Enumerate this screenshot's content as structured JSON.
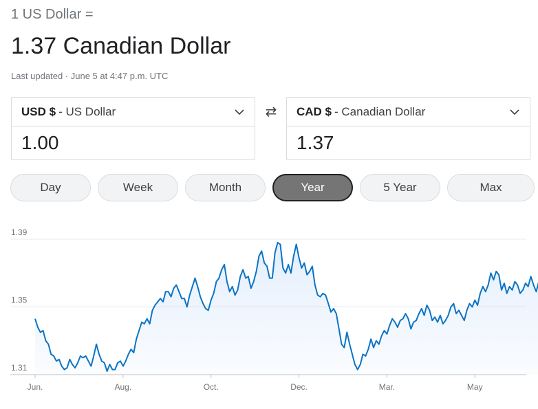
{
  "header": {
    "from_text": "1 US Dollar =",
    "to_text": "1.37 Canadian Dollar",
    "updated": "Last updated · June 5 at 4:47 p.m. UTC"
  },
  "from_currency": {
    "code": "USD $",
    "name": "- US Dollar",
    "amount": "1.00"
  },
  "to_currency": {
    "code": "CAD $",
    "name": "- Canadian Dollar",
    "amount": "1.37"
  },
  "swap_icon": "⇄",
  "ranges": [
    "Day",
    "Week",
    "Month",
    "Year",
    "5 Year",
    "Max"
  ],
  "active_range": "Year",
  "colors": {
    "line": "#1a73e8",
    "accent": "#0b74c4"
  },
  "chart_data": {
    "type": "line",
    "ylim": [
      1.31,
      1.39
    ],
    "yticks": [
      "1.39",
      "1.35",
      "1.31"
    ],
    "yticks_values": [
      1.39,
      1.35,
      1.31
    ],
    "xticks": [
      "Jun.",
      "Aug.",
      "Oct.",
      "Dec.",
      "Mar.",
      "May"
    ],
    "xticks_index": [
      0,
      33,
      66,
      99,
      132,
      165
    ],
    "series": [
      {
        "values": [
          1.343,
          1.338,
          1.335,
          1.336,
          1.33,
          1.328,
          1.322,
          1.321,
          1.318,
          1.319,
          1.315,
          1.313,
          1.314,
          1.319,
          1.316,
          1.314,
          1.317,
          1.321,
          1.32,
          1.321,
          1.318,
          1.315,
          1.321,
          1.328,
          1.322,
          1.318,
          1.317,
          1.312,
          1.316,
          1.313,
          1.313,
          1.317,
          1.318,
          1.315,
          1.318,
          1.322,
          1.325,
          1.323,
          1.331,
          1.336,
          1.341,
          1.34,
          1.343,
          1.34,
          1.348,
          1.351,
          1.353,
          1.355,
          1.353,
          1.359,
          1.359,
          1.356,
          1.361,
          1.363,
          1.359,
          1.355,
          1.355,
          1.35,
          1.357,
          1.362,
          1.367,
          1.362,
          1.356,
          1.352,
          1.349,
          1.348,
          1.354,
          1.358,
          1.365,
          1.367,
          1.372,
          1.375,
          1.365,
          1.359,
          1.362,
          1.357,
          1.36,
          1.368,
          1.372,
          1.367,
          1.368,
          1.361,
          1.365,
          1.371,
          1.38,
          1.383,
          1.376,
          1.374,
          1.367,
          1.367,
          1.382,
          1.388,
          1.387,
          1.373,
          1.37,
          1.375,
          1.37,
          1.38,
          1.387,
          1.379,
          1.373,
          1.376,
          1.369,
          1.371,
          1.374,
          1.363,
          1.357,
          1.356,
          1.358,
          1.357,
          1.352,
          1.347,
          1.349,
          1.346,
          1.337,
          1.328,
          1.326,
          1.335,
          1.328,
          1.322,
          1.316,
          1.313,
          1.316,
          1.322,
          1.321,
          1.325,
          1.331,
          1.326,
          1.33,
          1.328,
          1.333,
          1.336,
          1.334,
          1.339,
          1.343,
          1.341,
          1.338,
          1.342,
          1.343,
          1.346,
          1.343,
          1.337,
          1.341,
          1.342,
          1.346,
          1.349,
          1.345,
          1.351,
          1.348,
          1.342,
          1.344,
          1.341,
          1.345,
          1.34,
          1.342,
          1.345,
          1.35,
          1.352,
          1.346,
          1.348,
          1.345,
          1.342,
          1.348,
          1.352,
          1.35,
          1.354,
          1.351,
          1.358,
          1.362,
          1.359,
          1.363,
          1.37,
          1.366,
          1.371,
          1.369,
          1.36,
          1.364,
          1.358,
          1.362,
          1.36,
          1.365,
          1.363,
          1.358,
          1.36,
          1.364,
          1.362,
          1.368,
          1.363,
          1.359,
          1.365,
          1.364,
          1.362,
          1.37
        ]
      }
    ]
  }
}
